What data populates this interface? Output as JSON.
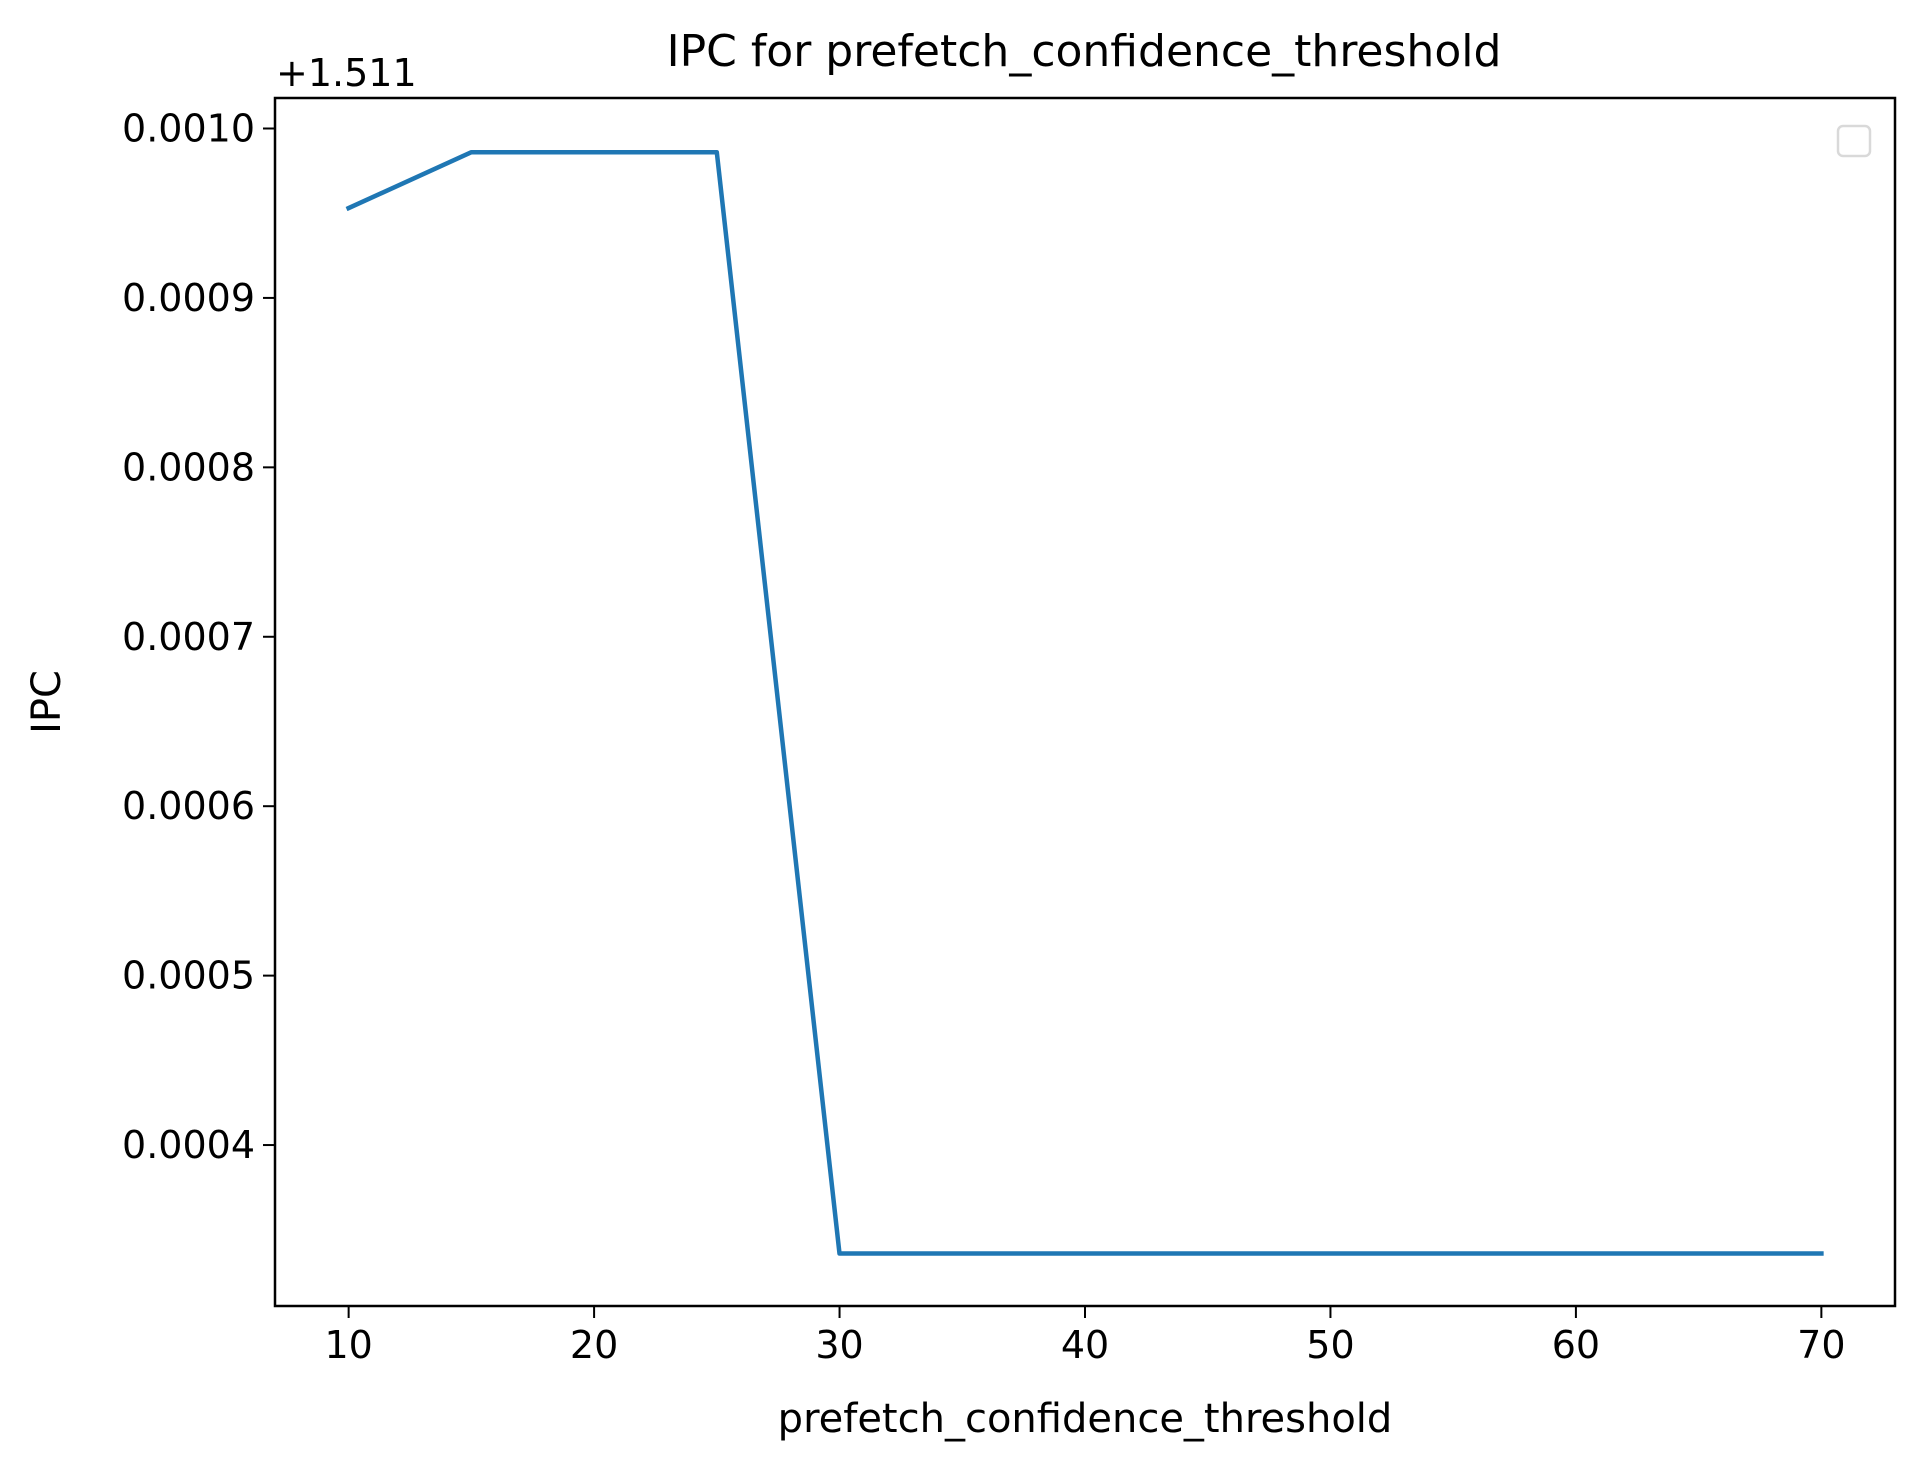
{
  "chart_data": {
    "type": "line",
    "title": "IPC for prefetch_confidence_threshold",
    "xlabel": "prefetch_confidence_threshold",
    "ylabel": "IPC",
    "y_offset_label": "+1.511",
    "xlim": [
      7,
      73
    ],
    "ylim": [
      0.000305,
      0.001018
    ],
    "xticks": [
      10,
      20,
      30,
      40,
      50,
      60,
      70
    ],
    "xtick_labels": [
      "10",
      "20",
      "30",
      "40",
      "50",
      "60",
      "70"
    ],
    "yticks": [
      0.0004,
      0.0005,
      0.0006,
      0.0007,
      0.0008,
      0.0009,
      0.001
    ],
    "ytick_labels": [
      "0.0004",
      "0.0005",
      "0.0006",
      "0.0007",
      "0.0008",
      "0.0009",
      "0.0010"
    ],
    "grid": false,
    "legend": "top-right (empty)",
    "series": [
      {
        "color": "#1f77b4",
        "x": [
          10,
          15,
          20,
          25,
          30,
          35,
          40,
          45,
          50,
          55,
          60,
          65,
          70
        ],
        "y": [
          0.000953,
          0.000986,
          0.000986,
          0.000986,
          0.000336,
          0.000336,
          0.000336,
          0.000336,
          0.000336,
          0.000336,
          0.000336,
          0.000336,
          0.000336
        ]
      }
    ]
  }
}
